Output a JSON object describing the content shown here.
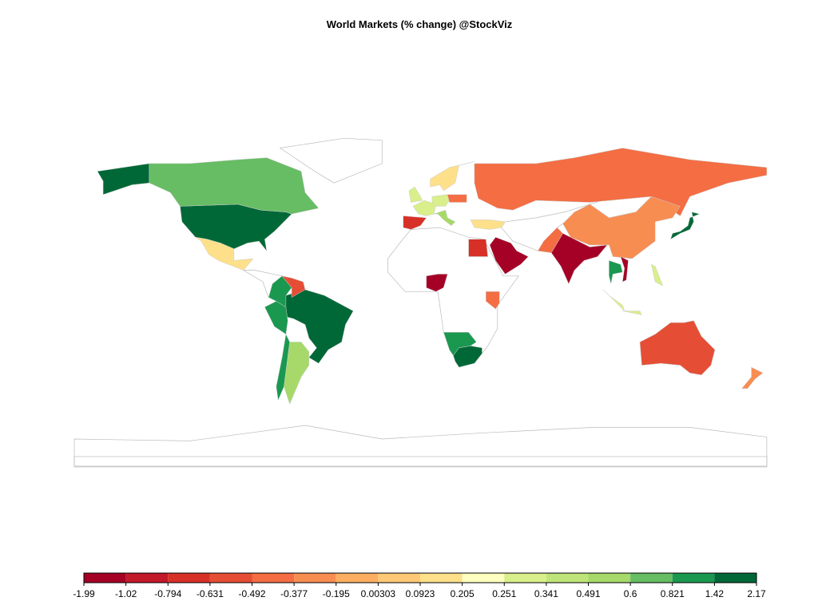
{
  "chart_data": {
    "type": "choropleth",
    "title": "World Markets (% change) @StockViz",
    "legend": {
      "breaks": [
        -1.99,
        -1.02,
        -0.794,
        -0.631,
        -0.492,
        -0.377,
        -0.195,
        0.00303,
        0.0923,
        0.205,
        0.251,
        0.341,
        0.491,
        0.6,
        0.821,
        1.42,
        2.17
      ],
      "colors": [
        "#a50026",
        "#c2192b",
        "#d73027",
        "#e54e35",
        "#f46d43",
        "#f88d52",
        "#fdae61",
        "#fec877",
        "#fee08b",
        "#ffffbf",
        "#d9ef8b",
        "#bfe47a",
        "#a6d96a",
        "#66bd63",
        "#1a9850",
        "#006837"
      ]
    },
    "regions": [
      1.5,
      1.5,
      0.7,
      0.1,
      1.5,
      1.0,
      1.0,
      1.0,
      0.55,
      -0.6,
      -0.7,
      0.3,
      0.3,
      0.3,
      0.5,
      0.1,
      -0.4,
      0.1,
      -0.4,
      -0.2,
      -1.5,
      -0.4,
      -1.2,
      -0.7,
      -1.8,
      -0.4,
      1.6,
      1.0,
      1.6,
      -0.6,
      -0.3,
      0.3,
      0.3,
      1.0,
      -1.2,
      0.3
    ]
  }
}
